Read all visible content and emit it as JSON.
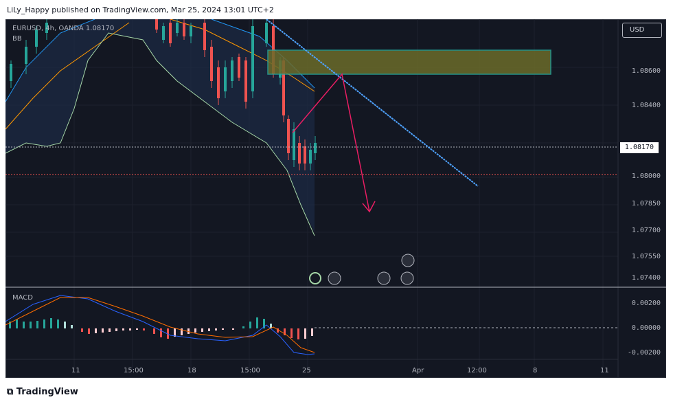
{
  "header": {
    "publisher_text": "LiLy_Happy published on TradingView.com, Mar 25, 2024 13:01 UTC+2"
  },
  "symbol": {
    "title": "EURUSD, 4h, OANDA 1.08170",
    "indicator": "BB"
  },
  "currency_button": "USD",
  "price_axis": {
    "labels": [
      "1.08600",
      "1.08400",
      "1.08000",
      "1.07850",
      "1.07700",
      "1.07550",
      "1.07400"
    ],
    "current_price": "1.08170"
  },
  "macd": {
    "label": "MACD",
    "axis_labels": [
      "0.00200",
      "0.00000",
      "-0.00200"
    ]
  },
  "time_axis": {
    "labels": [
      "11",
      "15:00",
      "18",
      "15:00",
      "25",
      "Apr",
      "12:00",
      "8",
      "11"
    ]
  },
  "footer": {
    "brand": "TradingView"
  },
  "colors": {
    "background": "#131722",
    "bullish": "#26a69a",
    "bearish": "#ef5350",
    "trendline": "#2962ff",
    "zone": "#6b6b2a",
    "arrow": "#e91e63"
  }
}
